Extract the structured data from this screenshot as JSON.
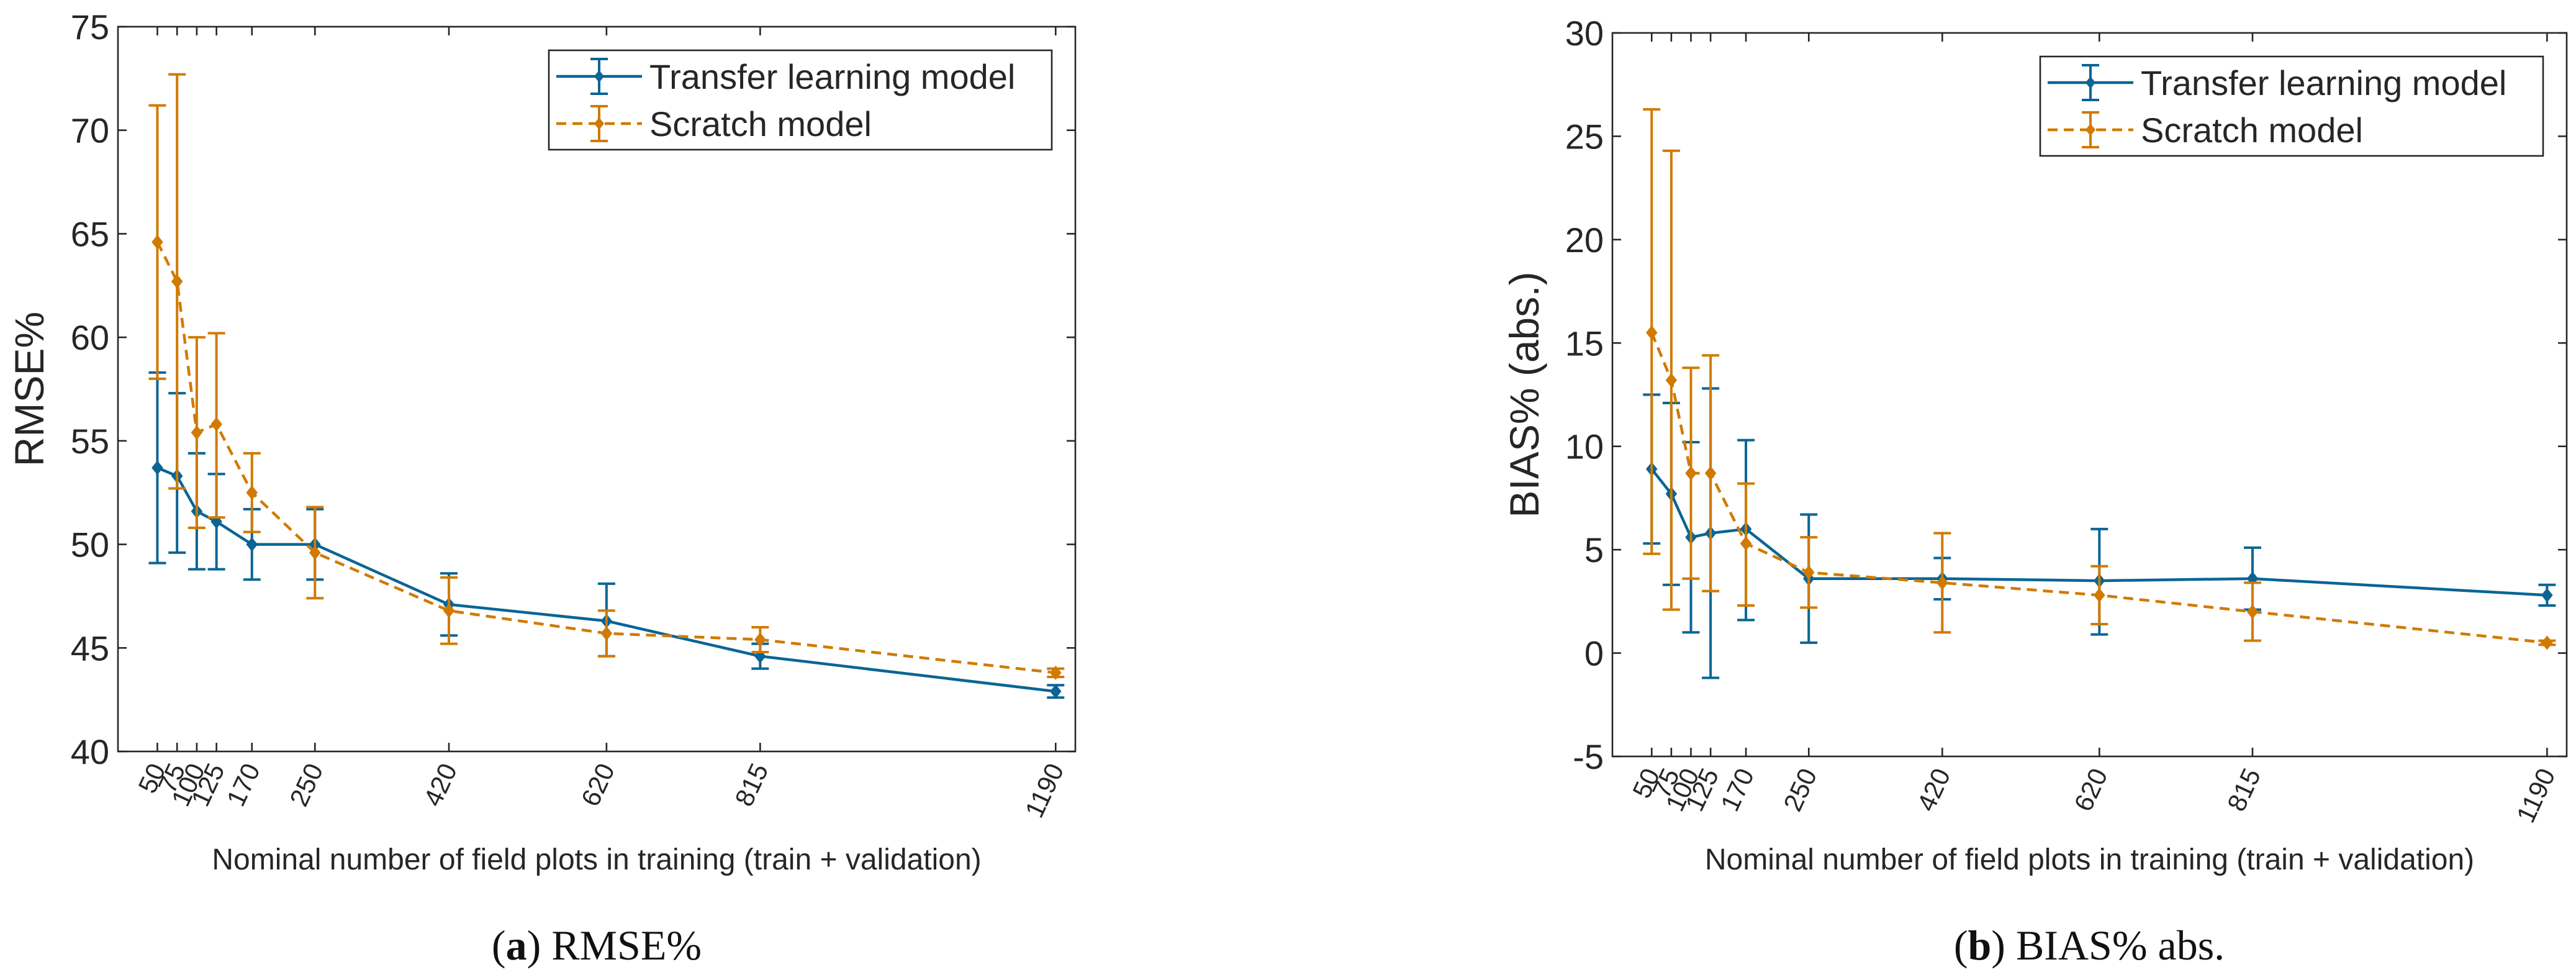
{
  "colors": {
    "transfer": "#0a6595",
    "scratch": "#d17a00"
  },
  "chart_data": [
    {
      "type": "line",
      "panel": "a",
      "caption_label": "a",
      "caption_text": "RMSE%",
      "ylabel": "RMSE%",
      "xlabel": "Nominal number of field plots in training (train + validation)",
      "ylim": [
        40,
        75
      ],
      "yticks": [
        40,
        45,
        50,
        55,
        60,
        65,
        70,
        75
      ],
      "xlim": [
        0,
        1215
      ],
      "x": [
        50,
        75,
        100,
        125,
        170,
        250,
        420,
        620,
        815,
        1190
      ],
      "x_tick_labels": [
        "50",
        "75",
        "100",
        "125",
        "170",
        "250",
        "420",
        "620",
        "815",
        "1190"
      ],
      "legend": {
        "position": "top-right"
      },
      "series": [
        {
          "name": "Transfer learning model",
          "style": "solid",
          "values": [
            53.7,
            53.3,
            51.6,
            51.1,
            50.0,
            50.0,
            47.1,
            46.3,
            44.6,
            42.9
          ],
          "err_low": [
            49.1,
            49.6,
            48.8,
            48.8,
            48.3,
            48.3,
            45.6,
            44.6,
            44.0,
            42.6
          ],
          "err_high": [
            58.3,
            57.3,
            54.4,
            53.4,
            51.7,
            51.7,
            48.6,
            48.1,
            45.2,
            43.2
          ]
        },
        {
          "name": "Scratch model",
          "style": "dashed",
          "values": [
            64.6,
            62.7,
            55.4,
            55.8,
            52.5,
            49.6,
            46.8,
            45.7,
            45.4,
            43.8
          ],
          "err_low": [
            58.0,
            52.7,
            50.8,
            51.3,
            50.6,
            47.4,
            45.2,
            44.6,
            44.8,
            43.6
          ],
          "err_high": [
            71.2,
            72.7,
            60.0,
            60.2,
            54.4,
            51.8,
            48.4,
            46.8,
            46.0,
            44.0
          ]
        }
      ]
    },
    {
      "type": "line",
      "panel": "b",
      "caption_label": "b",
      "caption_text": "BIAS% abs.",
      "ylabel": "BIAS% (abs.)",
      "xlabel": "Nominal number of field plots in training (train + validation)",
      "ylim": [
        -5,
        30
      ],
      "yticks": [
        -5,
        0,
        5,
        10,
        15,
        20,
        25,
        30
      ],
      "xlim": [
        0,
        1215
      ],
      "x": [
        50,
        75,
        100,
        125,
        170,
        250,
        420,
        620,
        815,
        1190
      ],
      "x_tick_labels": [
        "50",
        "75",
        "100",
        "125",
        "170",
        "250",
        "420",
        "620",
        "815",
        "1190"
      ],
      "legend": {
        "position": "top-right"
      },
      "series": [
        {
          "name": "Transfer learning model",
          "style": "solid",
          "values": [
            8.9,
            7.7,
            5.6,
            5.8,
            6.0,
            3.6,
            3.6,
            3.5,
            3.6,
            2.8
          ],
          "err_low": [
            5.3,
            3.3,
            1.0,
            -1.2,
            1.6,
            0.5,
            2.6,
            0.9,
            2.1,
            2.3
          ],
          "err_high": [
            12.5,
            12.1,
            10.2,
            12.8,
            10.3,
            6.7,
            4.6,
            6.0,
            5.1,
            3.3
          ]
        },
        {
          "name": "Scratch model",
          "style": "dashed",
          "values": [
            15.5,
            13.2,
            8.7,
            8.7,
            5.3,
            3.9,
            3.4,
            2.8,
            2.0,
            0.5
          ],
          "err_low": [
            4.8,
            2.1,
            3.6,
            3.0,
            2.3,
            2.2,
            1.0,
            1.4,
            0.6,
            0.4
          ],
          "err_high": [
            26.3,
            24.3,
            13.8,
            14.4,
            8.2,
            5.6,
            5.8,
            4.2,
            3.4,
            0.6
          ]
        }
      ]
    }
  ]
}
